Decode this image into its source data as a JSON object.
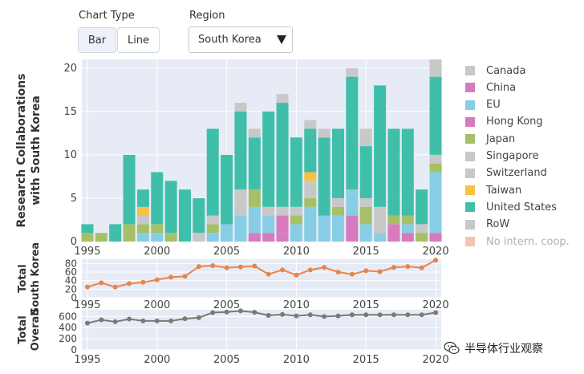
{
  "controls": {
    "chart_type_label": "Chart Type",
    "bar_label": "Bar",
    "line_label": "Line",
    "region_label": "Region",
    "region_value": "South Korea"
  },
  "watermark": "半导体行业观察",
  "colors": {
    "Canada": "#c8c8c8",
    "China": "#d67cbe",
    "EU": "#88cde6",
    "Hong Kong": "#d67cbe",
    "Japan": "#a5c066",
    "Singapore": "#c8c8c8",
    "Switzerland": "#c8c8c8",
    "Taiwan": "#f5c242",
    "United States": "#3fbfaa",
    "RoW": "#c8c8c8",
    "No intern. coop.": "#f6c4ad",
    "line_korea": "#e8844a",
    "line_overall": "#7a7a7a",
    "plot_bg": "#e6ebf5"
  },
  "legend": [
    "Canada",
    "China",
    "EU",
    "Hong Kong",
    "Japan",
    "Singapore",
    "Switzerland",
    "Taiwan",
    "United States",
    "RoW",
    "No intern. coop."
  ],
  "chart_data": [
    {
      "type": "bar",
      "stacked": true,
      "ylabel": "Research Collaborations with South Korea",
      "ylim": [
        0,
        21
      ],
      "yticks": [
        0,
        5,
        10,
        15,
        20
      ],
      "x": [
        1995,
        1996,
        1997,
        1998,
        1999,
        2000,
        2001,
        2002,
        2003,
        2004,
        2005,
        2006,
        2007,
        2008,
        2009,
        2010,
        2011,
        2012,
        2013,
        2014,
        2015,
        2016,
        2017,
        2018,
        2019,
        2020
      ],
      "xticks": [
        1995,
        2000,
        2005,
        2010,
        2015,
        2020
      ],
      "series": [
        {
          "name": "China",
          "values": [
            0,
            0,
            0,
            0,
            0,
            0,
            0,
            0,
            0,
            0,
            0,
            0,
            1,
            0,
            1,
            0,
            0,
            0,
            0,
            3,
            0,
            0,
            2,
            1,
            0,
            1
          ]
        },
        {
          "name": "Hong Kong",
          "values": [
            0,
            0,
            0,
            0,
            0,
            0,
            0,
            0,
            0,
            0,
            0,
            0,
            0,
            1,
            2,
            0,
            0,
            0,
            0,
            0,
            0,
            0,
            0,
            0,
            0,
            0
          ]
        },
        {
          "name": "EU",
          "values": [
            0,
            0,
            0,
            0,
            1,
            1,
            0,
            0,
            0,
            1,
            2,
            3,
            3,
            2,
            0,
            2,
            4,
            3,
            3,
            3,
            2,
            1,
            0,
            1,
            0,
            7
          ]
        },
        {
          "name": "Japan",
          "values": [
            1,
            1,
            0,
            2,
            1,
            1,
            1,
            0,
            0,
            1,
            0,
            0,
            2,
            0,
            0,
            1,
            1,
            0,
            1,
            0,
            2,
            0,
            1,
            1,
            1,
            1
          ]
        },
        {
          "name": "Switzerland",
          "values": [
            0,
            0,
            0,
            0,
            1,
            0,
            0,
            0,
            1,
            1,
            0,
            3,
            0,
            1,
            1,
            1,
            2,
            0,
            1,
            0,
            1,
            3,
            0,
            0,
            1,
            1
          ]
        },
        {
          "name": "Taiwan",
          "values": [
            0,
            0,
            0,
            0,
            1,
            0,
            0,
            0,
            0,
            0,
            0,
            0,
            0,
            0,
            0,
            0,
            1,
            0,
            0,
            0,
            0,
            0,
            0,
            0,
            0,
            0
          ]
        },
        {
          "name": "United States",
          "values": [
            1,
            0,
            2,
            8,
            2,
            6,
            6,
            6,
            4,
            10,
            8,
            9,
            6,
            11,
            12,
            8,
            5,
            9,
            8,
            13,
            6,
            14,
            10,
            10,
            4,
            9
          ]
        },
        {
          "name": "RoW",
          "values": [
            0,
            0,
            0,
            0,
            0,
            0,
            0,
            0,
            0,
            0,
            0,
            1,
            1,
            0,
            1,
            0,
            1,
            1,
            0,
            1,
            2,
            0,
            0,
            0,
            0,
            2
          ]
        }
      ]
    },
    {
      "type": "line",
      "ylabel": "Total South Korea",
      "ylim": [
        0,
        90
      ],
      "yticks": [
        0,
        20,
        40,
        60,
        80
      ],
      "x": [
        1995,
        1996,
        1997,
        1998,
        1999,
        2000,
        2001,
        2002,
        2003,
        2004,
        2005,
        2006,
        2007,
        2008,
        2009,
        2010,
        2011,
        2012,
        2013,
        2014,
        2015,
        2016,
        2017,
        2018,
        2019,
        2020
      ],
      "xticks": [
        1995,
        2000,
        2005,
        2010,
        2015,
        2020
      ],
      "series": [
        {
          "name": "South Korea",
          "values": [
            25,
            35,
            25,
            33,
            36,
            42,
            48,
            50,
            73,
            75,
            70,
            72,
            74,
            55,
            65,
            53,
            65,
            71,
            60,
            55,
            63,
            61,
            71,
            73,
            70,
            88
          ]
        }
      ]
    },
    {
      "type": "line",
      "ylabel": "Total Overall",
      "ylim": [
        0,
        720
      ],
      "yticks": [
        0,
        200,
        400,
        600
      ],
      "x": [
        1995,
        1996,
        1997,
        1998,
        1999,
        2000,
        2001,
        2002,
        2003,
        2004,
        2005,
        2006,
        2007,
        2008,
        2009,
        2010,
        2011,
        2012,
        2013,
        2014,
        2015,
        2016,
        2017,
        2018,
        2019,
        2020
      ],
      "xticks": [
        1995,
        2000,
        2005,
        2010,
        2015,
        2020
      ],
      "series": [
        {
          "name": "Overall",
          "values": [
            480,
            540,
            505,
            555,
            520,
            520,
            520,
            560,
            580,
            670,
            680,
            700,
            675,
            620,
            635,
            610,
            630,
            600,
            610,
            630,
            630,
            630,
            630,
            630,
            630,
            670
          ]
        }
      ]
    }
  ]
}
